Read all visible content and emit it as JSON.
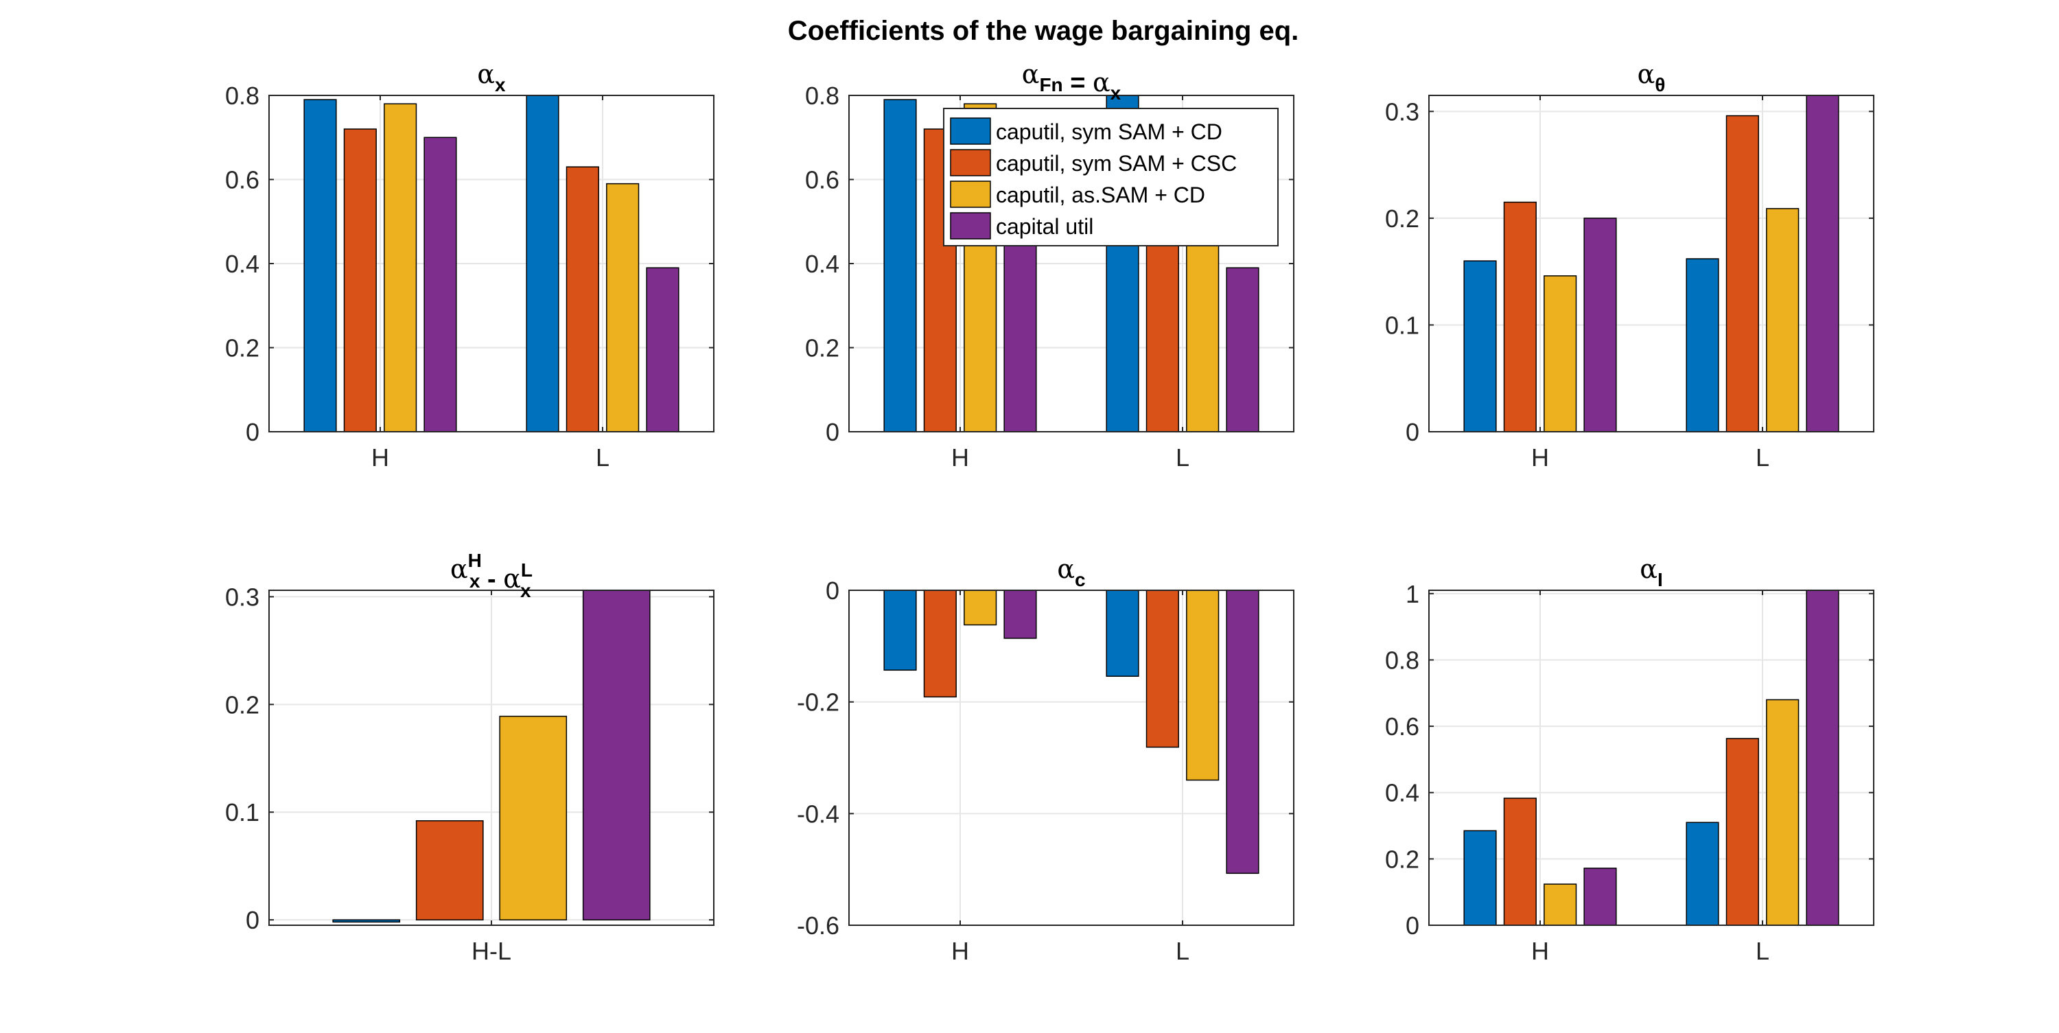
{
  "figure": {
    "title": "Coefficients of the wage bargaining eq."
  },
  "legend": {
    "entries": [
      "caputil, sym SAM + CD",
      "caputil, sym SAM + CSC",
      "caputil, as.SAM + CD",
      "capital util"
    ]
  },
  "colors": {
    "series": [
      "#0072BD",
      "#D95319",
      "#EDB120",
      "#7E2F8E"
    ],
    "grid": "#e6e6e6",
    "axis": "#262626"
  },
  "chart_data": [
    {
      "type": "bar",
      "title": {
        "base": "α",
        "sub": "x"
      },
      "categories": [
        "H",
        "L"
      ],
      "series": [
        {
          "name": "caputil, sym SAM + CD",
          "values": [
            0.79,
            0.8
          ]
        },
        {
          "name": "caputil, sym SAM + CSC",
          "values": [
            0.72,
            0.63
          ]
        },
        {
          "name": "caputil, as.SAM + CD",
          "values": [
            0.78,
            0.59
          ]
        },
        {
          "name": "capital util",
          "values": [
            0.7,
            0.39
          ]
        }
      ],
      "ylim": [
        0,
        0.8
      ],
      "yticks": [
        "0",
        "0.2",
        "0.4",
        "0.6",
        "0.8"
      ],
      "grid": true
    },
    {
      "type": "bar",
      "title": {
        "base": "α",
        "sub": "Fn",
        "eq": " = ",
        "base2": "α",
        "sub2": "x"
      },
      "categories": [
        "H",
        "L"
      ],
      "series": [
        {
          "name": "caputil, sym SAM + CD",
          "values": [
            0.79,
            0.8
          ]
        },
        {
          "name": "caputil, sym SAM + CSC",
          "values": [
            0.72,
            0.63
          ]
        },
        {
          "name": "caputil, as.SAM + CD",
          "values": [
            0.78,
            0.59
          ]
        },
        {
          "name": "capital util",
          "values": [
            0.7,
            0.39
          ]
        }
      ],
      "ylim": [
        0,
        0.8
      ],
      "yticks": [
        "0",
        "0.2",
        "0.4",
        "0.6",
        "0.8"
      ],
      "grid": true,
      "legend": "top-right"
    },
    {
      "type": "bar",
      "title": {
        "base": "α",
        "sub": "θ"
      },
      "categories": [
        "H",
        "L"
      ],
      "series": [
        {
          "name": "caputil, sym SAM + CD",
          "values": [
            0.16,
            0.162
          ]
        },
        {
          "name": "caputil, sym SAM + CSC",
          "values": [
            0.215,
            0.296
          ]
        },
        {
          "name": "caputil, as.SAM + CD",
          "values": [
            0.146,
            0.209
          ]
        },
        {
          "name": "capital util",
          "values": [
            0.2,
            0.315
          ]
        }
      ],
      "ylim": [
        0,
        0.315
      ],
      "yticks": [
        "0",
        "0.1",
        "0.2",
        "0.3"
      ],
      "grid": true
    },
    {
      "type": "bar",
      "title": {
        "base": "α",
        "sup": "H",
        "sub": "x",
        "eq": " - ",
        "base2": "α",
        "sup2": "L",
        "sub2": "x"
      },
      "categories": [
        "H-L"
      ],
      "series": [
        {
          "name": "caputil, sym SAM + CD",
          "values": [
            -0.002
          ]
        },
        {
          "name": "caputil, sym SAM + CSC",
          "values": [
            0.092
          ]
        },
        {
          "name": "caputil, as.SAM + CD",
          "values": [
            0.189
          ]
        },
        {
          "name": "capital util",
          "values": [
            0.306
          ]
        }
      ],
      "ylim": [
        -0.005,
        0.306
      ],
      "yticks": [
        "0",
        "0.1",
        "0.2",
        "0.3"
      ],
      "grid": true
    },
    {
      "type": "bar",
      "title": {
        "base": "α",
        "sub": "c"
      },
      "categories": [
        "H",
        "L"
      ],
      "series": [
        {
          "name": "caputil, sym SAM + CD",
          "values": [
            -0.143,
            -0.154
          ]
        },
        {
          "name": "caputil, sym SAM + CSC",
          "values": [
            -0.191,
            -0.281
          ]
        },
        {
          "name": "caputil, as.SAM + CD",
          "values": [
            -0.062,
            -0.34
          ]
        },
        {
          "name": "capital util",
          "values": [
            -0.086,
            -0.507
          ]
        }
      ],
      "ylim": [
        -0.6,
        0
      ],
      "yticks": [
        "0",
        "-0.2",
        "-0.4",
        "-0.6"
      ],
      "grid": true
    },
    {
      "type": "bar",
      "title": {
        "base": "α",
        "sub": "I"
      },
      "categories": [
        "H",
        "L"
      ],
      "series": [
        {
          "name": "caputil, sym SAM + CD",
          "values": [
            0.285,
            0.31
          ]
        },
        {
          "name": "caputil, sym SAM + CSC",
          "values": [
            0.383,
            0.563
          ]
        },
        {
          "name": "caputil, as.SAM + CD",
          "values": [
            0.124,
            0.68
          ]
        },
        {
          "name": "capital util",
          "values": [
            0.172,
            1.01
          ]
        }
      ],
      "ylim": [
        0,
        1.01
      ],
      "yticks": [
        "0",
        "0.2",
        "0.4",
        "0.6",
        "0.8",
        "1"
      ],
      "grid": true
    }
  ]
}
